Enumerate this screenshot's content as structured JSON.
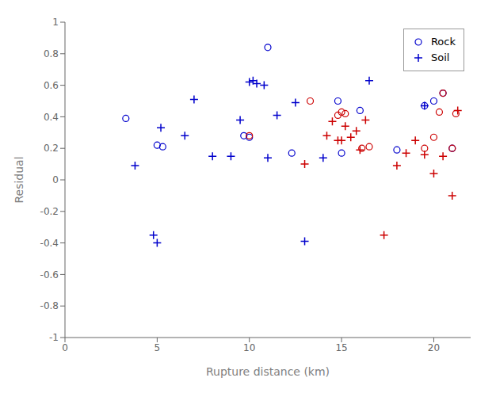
{
  "chart_data": {
    "type": "scatter",
    "xlabel": "Rupture distance (km)",
    "ylabel": "Residual",
    "xlim": [
      0,
      22
    ],
    "ylim": [
      -1,
      1
    ],
    "xticks": [
      0,
      5,
      10,
      15,
      20
    ],
    "yticks": [
      -1,
      -0.8,
      -0.6,
      -0.4,
      -0.2,
      0,
      0.2,
      0.4,
      0.6,
      0.8,
      1
    ],
    "grid": false,
    "legend": "upper right",
    "series": [
      {
        "name": "Rock",
        "color": "#0000cc",
        "marker": "circle",
        "x": [
          3.3,
          5.0,
          5.3,
          9.7,
          10.0,
          11.0,
          12.3,
          14.8,
          15.0,
          16.0,
          18.0,
          19.5,
          20.0,
          20.5,
          21.0
        ],
        "values": [
          0.39,
          0.22,
          0.21,
          0.28,
          0.27,
          0.84,
          0.17,
          0.5,
          0.17,
          0.44,
          0.19,
          0.47,
          0.5,
          0.55,
          0.2
        ]
      },
      {
        "name": "Soil",
        "color": "#0000cc",
        "marker": "plus",
        "x": [
          3.8,
          4.8,
          5.0,
          5.2,
          6.5,
          7.0,
          8.0,
          9.0,
          9.5,
          10.0,
          10.2,
          10.4,
          10.8,
          11.0,
          11.5,
          12.5,
          13.0,
          14.0,
          16.5,
          19.5
        ],
        "values": [
          0.09,
          -0.35,
          -0.4,
          0.33,
          0.28,
          0.51,
          0.15,
          0.15,
          0.38,
          0.62,
          0.63,
          0.61,
          0.6,
          0.14,
          0.41,
          0.49,
          -0.39,
          0.14,
          0.63,
          0.47
        ]
      },
      {
        "name": "Rock",
        "color": "#cc0000",
        "marker": "circle",
        "x": [
          10.0,
          13.3,
          14.8,
          15.0,
          15.2,
          16.1,
          16.5,
          19.5,
          20.0,
          20.3,
          20.5,
          21.0,
          21.2
        ],
        "values": [
          0.28,
          0.5,
          0.41,
          0.43,
          0.42,
          0.2,
          0.21,
          0.2,
          0.27,
          0.43,
          0.55,
          0.2,
          0.42
        ]
      },
      {
        "name": "Soil",
        "color": "#cc0000",
        "marker": "plus",
        "x": [
          13.0,
          14.2,
          14.5,
          14.8,
          15.0,
          15.2,
          15.5,
          15.8,
          16.0,
          16.3,
          17.3,
          18.0,
          18.5,
          19.0,
          19.5,
          20.0,
          20.5,
          21.0,
          21.3
        ],
        "values": [
          0.1,
          0.28,
          0.37,
          0.25,
          0.25,
          0.34,
          0.27,
          0.31,
          0.19,
          0.38,
          -0.35,
          0.09,
          0.17,
          0.25,
          0.16,
          0.04,
          0.15,
          -0.1,
          0.44
        ]
      }
    ]
  }
}
